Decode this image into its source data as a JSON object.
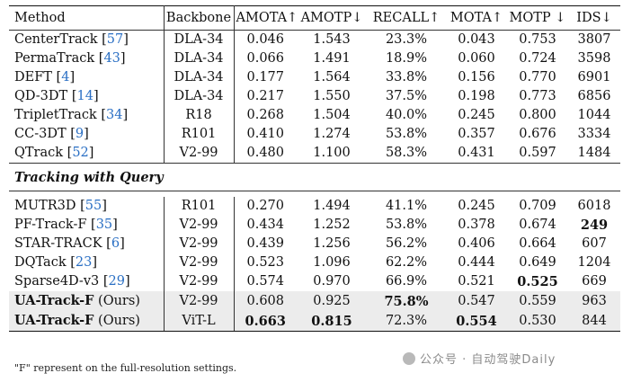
{
  "columns": {
    "method": "Method",
    "backbone": "Backbone",
    "amota": "AMOTA↑",
    "amotp": "AMOTP↓",
    "recall": "RECALL↑",
    "mota": "MOTA↑",
    "motp": "MOTP ↓",
    "ids": "IDS↓"
  },
  "section_label": "Tracking with Query",
  "group1": [
    {
      "name": "CenterTrack",
      "ref": "57",
      "backbone": "DLA-34",
      "amota": "0.046",
      "amotp": "1.543",
      "recall": "23.3%",
      "mota": "0.043",
      "motp": "0.753",
      "ids": "3807"
    },
    {
      "name": "PermaTrack",
      "ref": "43",
      "backbone": "DLA-34",
      "amota": "0.066",
      "amotp": "1.491",
      "recall": "18.9%",
      "mota": "0.060",
      "motp": "0.724",
      "ids": "3598"
    },
    {
      "name": "DEFT",
      "ref": "4",
      "backbone": "DLA-34",
      "amota": "0.177",
      "amotp": "1.564",
      "recall": "33.8%",
      "mota": "0.156",
      "motp": "0.770",
      "ids": "6901"
    },
    {
      "name": "QD-3DT",
      "ref": "14",
      "backbone": "DLA-34",
      "amota": "0.217",
      "amotp": "1.550",
      "recall": "37.5%",
      "mota": "0.198",
      "motp": "0.773",
      "ids": "6856"
    },
    {
      "name": "TripletTrack",
      "ref": "34",
      "backbone": "R18",
      "amota": "0.268",
      "amotp": "1.504",
      "recall": "40.0%",
      "mota": "0.245",
      "motp": "0.800",
      "ids": "1044"
    },
    {
      "name": "CC-3DT",
      "ref": "9",
      "backbone": "R101",
      "amota": "0.410",
      "amotp": "1.274",
      "recall": "53.8%",
      "mota": "0.357",
      "motp": "0.676",
      "ids": "3334"
    },
    {
      "name": "QTrack",
      "ref": "52",
      "backbone": "V2-99",
      "amota": "0.480",
      "amotp": "1.100",
      "recall": "58.3%",
      "mota": "0.431",
      "motp": "0.597",
      "ids": "1484"
    }
  ],
  "group2": [
    {
      "name": "MUTR3D",
      "ref": "55",
      "backbone": "R101",
      "amota": "0.270",
      "amotp": "1.494",
      "recall": "41.1%",
      "mota": "0.245",
      "motp": "0.709",
      "ids": "6018"
    },
    {
      "name": "PF-Track-F",
      "ref": "35",
      "backbone": "V2-99",
      "amota": "0.434",
      "amotp": "1.252",
      "recall": "53.8%",
      "mota": "0.378",
      "motp": "0.674",
      "ids": "249"
    },
    {
      "name": "STAR-TRACK",
      "ref": "6",
      "backbone": "V2-99",
      "amota": "0.439",
      "amotp": "1.256",
      "recall": "56.2%",
      "mota": "0.406",
      "motp": "0.664",
      "ids": "607"
    },
    {
      "name": "DQTack",
      "ref": "23",
      "backbone": "V2-99",
      "amota": "0.523",
      "amotp": "1.096",
      "recall": "62.2%",
      "mota": "0.444",
      "motp": "0.649",
      "ids": "1204"
    },
    {
      "name": "Sparse4D-v3",
      "ref": "29",
      "backbone": "V2-99",
      "amota": "0.574",
      "amotp": "0.970",
      "recall": "66.9%",
      "mota": "0.521",
      "motp": "0.525",
      "ids": "669"
    }
  ],
  "ours": [
    {
      "name": "UA-Track-F",
      "tag": "(Ours)",
      "backbone": "V2-99",
      "amota": "0.608",
      "amotp": "0.925",
      "recall": "75.8%",
      "mota": "0.547",
      "motp": "0.559",
      "ids": "963"
    },
    {
      "name": "UA-Track-F",
      "tag": "(Ours)",
      "backbone": "ViT-L",
      "amota": "0.663",
      "amotp": "0.815",
      "recall": "72.3%",
      "mota": "0.554",
      "motp": "0.530",
      "ids": "844"
    }
  ],
  "footnote": "\"F\" represent on the full-resolution settings.",
  "watermark": "公众号 · 自动驾驶Daily"
}
